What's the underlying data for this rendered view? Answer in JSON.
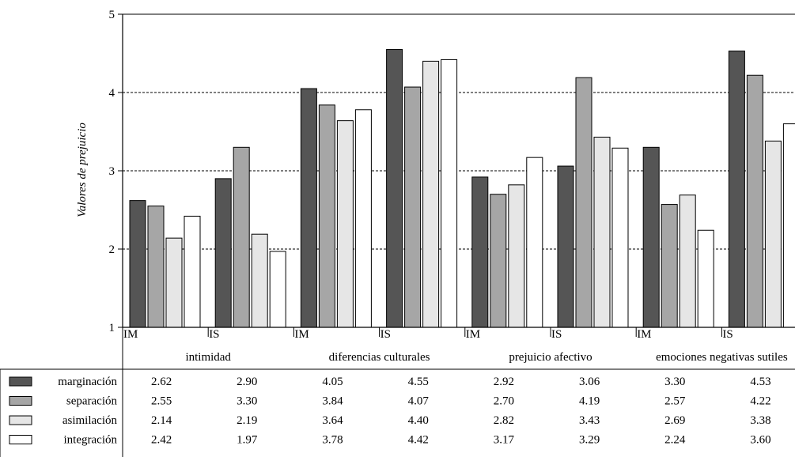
{
  "chart_data": {
    "type": "bar",
    "ylabel": "Valores de prejuicio",
    "ylim": [
      1,
      5
    ],
    "yticks": [
      1,
      2,
      3,
      4,
      5
    ],
    "grid": "horizontal dashed",
    "groups": [
      {
        "name": "intimidad",
        "subgroups": [
          "IM",
          "IS"
        ]
      },
      {
        "name": "diferencias culturales",
        "subgroups": [
          "IM",
          "IS"
        ]
      },
      {
        "name": "prejuicio afectivo",
        "subgroups": [
          "IM",
          "IS"
        ]
      },
      {
        "name": "emociones negativas sutiles",
        "subgroups": [
          "IM",
          "IS"
        ]
      }
    ],
    "series": [
      {
        "name": "marginación",
        "color": "#555555",
        "values": [
          "2.62",
          "2.90",
          "4.05",
          "4.55",
          "2.92",
          "3.06",
          "3.30",
          "4.53"
        ]
      },
      {
        "name": "separación",
        "color": "#a6a6a6",
        "values": [
          "2.55",
          "3.30",
          "3.84",
          "4.07",
          "2.70",
          "4.19",
          "2.57",
          "4.22"
        ]
      },
      {
        "name": "asimilación",
        "color": "#e6e6e6",
        "values": [
          "2.14",
          "2.19",
          "3.64",
          "4.40",
          "2.82",
          "3.43",
          "2.69",
          "3.38"
        ]
      },
      {
        "name": "integración",
        "color": "#ffffff",
        "values": [
          "2.42",
          "1.97",
          "3.78",
          "4.42",
          "3.17",
          "3.29",
          "2.24",
          "3.60"
        ]
      }
    ]
  }
}
